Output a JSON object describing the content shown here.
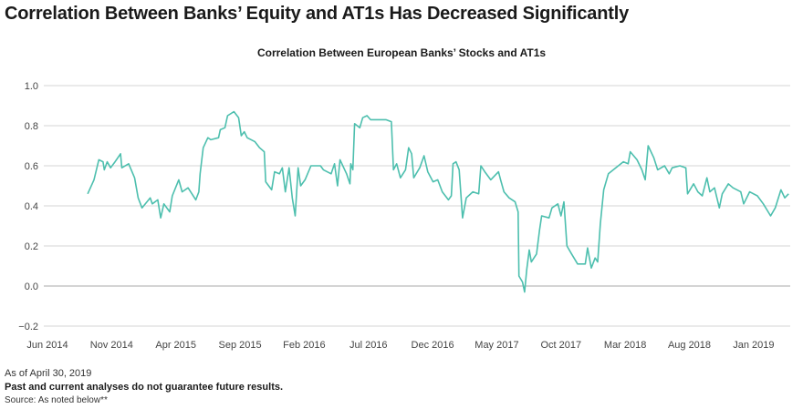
{
  "header": {
    "title": "Correlation Between Banks’ Equity and AT1s Has Decreased Significantly"
  },
  "footer": {
    "as_of": "As of April 30, 2019",
    "disclaimer": "Past and current analyses do not guarantee future results.",
    "source": "Source: As noted below**"
  },
  "colors": {
    "line": "#4dbfae",
    "grid": "#d6d6d6",
    "baseline": "#a8a8a8"
  },
  "chart_data": {
    "type": "line",
    "title": "Correlation Between European Banks’ Stocks and AT1s",
    "xlabel": "",
    "ylabel": "",
    "ylim": [
      -0.2,
      1.0
    ],
    "yticks": [
      "1.0",
      "0.8",
      "0.6",
      "0.4",
      "0.2",
      "0.0",
      "−0.2"
    ],
    "ytick_values": [
      1.0,
      0.8,
      0.6,
      0.4,
      0.2,
      0.0,
      -0.2
    ],
    "xticks": [
      "Jun 2014",
      "Nov 2014",
      "Apr 2015",
      "Sep 2015",
      "Feb 2016",
      "Jul 2016",
      "Dec 2016",
      "May 2017",
      "Oct 2017",
      "Mar 2018",
      "Aug 2018",
      "Jan 2019"
    ],
    "xtick_dates": [
      "2014-06-01",
      "2014-11-01",
      "2015-04-01",
      "2015-09-01",
      "2016-02-01",
      "2016-07-01",
      "2016-12-01",
      "2017-05-01",
      "2017-10-01",
      "2018-03-01",
      "2018-08-01",
      "2019-01-01"
    ],
    "grid": true,
    "series": [
      {
        "x": [
          "2014-09-05",
          "2014-09-20",
          "2014-10-01",
          "2014-10-11",
          "2014-10-14",
          "2014-10-21",
          "2014-10-29",
          "2014-11-09",
          "2014-11-22",
          "2014-11-25",
          "2014-12-11",
          "2014-12-25",
          "2015-01-03",
          "2015-01-12",
          "2015-02-01",
          "2015-02-06",
          "2015-02-19",
          "2015-02-26",
          "2015-03-03",
          "2015-03-17",
          "2015-03-23",
          "2015-04-08",
          "2015-04-16",
          "2015-04-30",
          "2015-05-18",
          "2015-05-25",
          "2015-05-28",
          "2015-06-05",
          "2015-06-16",
          "2015-06-23",
          "2015-07-11",
          "2015-07-15",
          "2015-07-26",
          "2015-08-02",
          "2015-08-17",
          "2015-08-28",
          "2015-09-04",
          "2015-09-11",
          "2015-09-18",
          "2015-10-06",
          "2015-10-17",
          "2015-10-28",
          "2015-11-01",
          "2015-11-15",
          "2015-11-22",
          "2015-12-03",
          "2015-12-10",
          "2015-12-17",
          "2015-12-26",
          "2016-01-03",
          "2016-01-10",
          "2016-01-17",
          "2016-01-23",
          "2016-02-03",
          "2016-02-17",
          "2016-03-09",
          "2016-03-16",
          "2016-04-04",
          "2016-04-12",
          "2016-04-19",
          "2016-04-25",
          "2016-05-10",
          "2016-05-18",
          "2016-05-20",
          "2016-05-25",
          "2016-05-29",
          "2016-06-11",
          "2016-06-18",
          "2016-06-28",
          "2016-07-06",
          "2016-08-12",
          "2016-08-25",
          "2016-08-30",
          "2016-09-07",
          "2016-09-16",
          "2016-09-28",
          "2016-10-05",
          "2016-10-12",
          "2016-10-17",
          "2016-11-01",
          "2016-11-11",
          "2016-11-20",
          "2016-12-02",
          "2016-12-13",
          "2016-12-24",
          "2017-01-08",
          "2017-01-15",
          "2017-01-19",
          "2017-01-26",
          "2017-02-03",
          "2017-02-11",
          "2017-02-20",
          "2017-03-05",
          "2017-03-19",
          "2017-03-24",
          "2017-04-03",
          "2017-04-17",
          "2017-05-05",
          "2017-05-10",
          "2017-05-18",
          "2017-05-30",
          "2017-06-14",
          "2017-06-21",
          "2017-06-23",
          "2017-07-01",
          "2017-07-06",
          "2017-07-11",
          "2017-07-17",
          "2017-07-22",
          "2017-08-04",
          "2017-08-11",
          "2017-08-16",
          "2017-09-03",
          "2017-09-10",
          "2017-09-24",
          "2017-10-01",
          "2017-10-08",
          "2017-10-15",
          "2017-10-26",
          "2017-11-10",
          "2017-11-28",
          "2017-12-03",
          "2017-12-12",
          "2017-12-21",
          "2017-12-27",
          "2018-01-03",
          "2018-01-11",
          "2018-01-22",
          "2018-02-09",
          "2018-02-27",
          "2018-03-08",
          "2018-03-13",
          "2018-03-29",
          "2018-04-10",
          "2018-04-18",
          "2018-04-25",
          "2018-05-08",
          "2018-05-17",
          "2018-06-03",
          "2018-06-14",
          "2018-06-21",
          "2018-07-09",
          "2018-07-23",
          "2018-07-27",
          "2018-08-11",
          "2018-08-21",
          "2018-09-01",
          "2018-09-12",
          "2018-09-19",
          "2018-09-30",
          "2018-10-11",
          "2018-10-18",
          "2018-11-02",
          "2018-11-13",
          "2018-12-01",
          "2018-12-08",
          "2018-12-22",
          "2019-01-10",
          "2019-01-24",
          "2019-02-11",
          "2019-02-22",
          "2019-03-05",
          "2019-03-14",
          "2019-03-23"
        ],
        "values": [
          0.46,
          0.53,
          0.63,
          0.62,
          0.58,
          0.62,
          0.59,
          0.62,
          0.66,
          0.59,
          0.61,
          0.54,
          0.44,
          0.39,
          0.44,
          0.41,
          0.43,
          0.34,
          0.41,
          0.37,
          0.45,
          0.53,
          0.47,
          0.49,
          0.43,
          0.47,
          0.56,
          0.69,
          0.74,
          0.73,
          0.74,
          0.78,
          0.79,
          0.85,
          0.87,
          0.84,
          0.75,
          0.77,
          0.74,
          0.72,
          0.69,
          0.67,
          0.52,
          0.48,
          0.57,
          0.56,
          0.59,
          0.47,
          0.59,
          0.44,
          0.35,
          0.59,
          0.5,
          0.53,
          0.6,
          0.6,
          0.58,
          0.56,
          0.61,
          0.5,
          0.63,
          0.56,
          0.51,
          0.61,
          0.58,
          0.81,
          0.79,
          0.84,
          0.85,
          0.83,
          0.83,
          0.82,
          0.58,
          0.61,
          0.54,
          0.58,
          0.69,
          0.66,
          0.54,
          0.59,
          0.65,
          0.57,
          0.52,
          0.53,
          0.47,
          0.43,
          0.45,
          0.61,
          0.62,
          0.58,
          0.34,
          0.44,
          0.47,
          0.46,
          0.6,
          0.57,
          0.53,
          0.57,
          0.53,
          0.47,
          0.44,
          0.42,
          0.37,
          0.05,
          0.02,
          -0.03,
          0.08,
          0.18,
          0.12,
          0.16,
          0.28,
          0.35,
          0.34,
          0.39,
          0.41,
          0.35,
          0.42,
          0.2,
          0.16,
          0.11,
          0.11,
          0.19,
          0.09,
          0.14,
          0.12,
          0.31,
          0.48,
          0.56,
          0.59,
          0.62,
          0.61,
          0.67,
          0.63,
          0.58,
          0.53,
          0.7,
          0.64,
          0.58,
          0.6,
          0.56,
          0.59,
          0.6,
          0.59,
          0.46,
          0.51,
          0.47,
          0.45,
          0.54,
          0.47,
          0.49,
          0.39,
          0.46,
          0.51,
          0.49,
          0.47,
          0.41,
          0.47,
          0.45,
          0.41,
          0.35,
          0.39,
          0.48,
          0.44,
          0.46
        ]
      }
    ]
  }
}
